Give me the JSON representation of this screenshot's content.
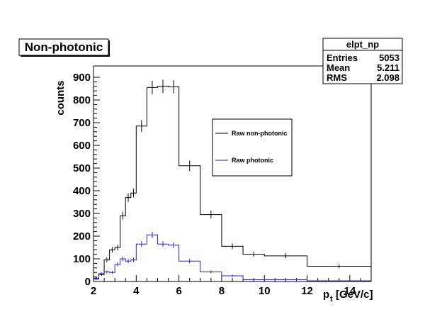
{
  "chart_data": {
    "type": "histogram",
    "title": "Non-photonic",
    "xlabel": "p",
    "xlabel_sub": "t",
    "xlabel_unit": "[GeV/c]",
    "ylabel": "counts",
    "xlim": [
      2,
      15
    ],
    "ylim": [
      0,
      950
    ],
    "x_ticks": [
      2,
      4,
      6,
      8,
      10,
      12,
      14
    ],
    "y_ticks": [
      0,
      100,
      200,
      300,
      400,
      500,
      600,
      700,
      800,
      900
    ],
    "stats": {
      "name": "elpt_np",
      "rows": [
        {
          "label": "Entries",
          "value": "5053"
        },
        {
          "label": "Mean",
          "value": "5.211"
        },
        {
          "label": "RMS",
          "value": "2.098"
        }
      ]
    },
    "legend_position": "center-right",
    "series": [
      {
        "name": "Raw non-photonic",
        "color": "#000000",
        "bins": [
          {
            "lo": 2.0,
            "hi": 2.25,
            "y": 15
          },
          {
            "lo": 2.25,
            "hi": 2.5,
            "y": 30
          },
          {
            "lo": 2.5,
            "hi": 2.75,
            "y": 95
          },
          {
            "lo": 2.75,
            "hi": 3.0,
            "y": 140
          },
          {
            "lo": 3.0,
            "hi": 3.25,
            "y": 150
          },
          {
            "lo": 3.25,
            "hi": 3.5,
            "y": 290
          },
          {
            "lo": 3.5,
            "hi": 3.75,
            "y": 370
          },
          {
            "lo": 3.75,
            "hi": 4.0,
            "y": 390
          },
          {
            "lo": 4.0,
            "hi": 4.5,
            "y": 685
          },
          {
            "lo": 4.5,
            "hi": 5.0,
            "y": 855
          },
          {
            "lo": 5.0,
            "hi": 5.5,
            "y": 860
          },
          {
            "lo": 5.5,
            "hi": 6.0,
            "y": 858
          },
          {
            "lo": 6.0,
            "hi": 7.0,
            "y": 510
          },
          {
            "lo": 7.0,
            "hi": 8.0,
            "y": 295
          },
          {
            "lo": 8.0,
            "hi": 9.0,
            "y": 155
          },
          {
            "lo": 9.0,
            "hi": 10.0,
            "y": 120
          },
          {
            "lo": 10.0,
            "hi": 12.0,
            "y": 113
          },
          {
            "lo": 12.0,
            "hi": 15.0,
            "y": 67
          }
        ]
      },
      {
        "name": "Raw photonic",
        "color": "#2222dd",
        "bins": [
          {
            "lo": 2.0,
            "hi": 2.25,
            "y": 10
          },
          {
            "lo": 2.25,
            "hi": 2.5,
            "y": 35
          },
          {
            "lo": 2.5,
            "hi": 2.75,
            "y": 42
          },
          {
            "lo": 2.75,
            "hi": 3.0,
            "y": 40
          },
          {
            "lo": 3.0,
            "hi": 3.25,
            "y": 75
          },
          {
            "lo": 3.25,
            "hi": 3.5,
            "y": 100
          },
          {
            "lo": 3.5,
            "hi": 3.75,
            "y": 90
          },
          {
            "lo": 3.75,
            "hi": 4.0,
            "y": 95
          },
          {
            "lo": 4.0,
            "hi": 4.5,
            "y": 165
          },
          {
            "lo": 4.5,
            "hi": 5.0,
            "y": 205
          },
          {
            "lo": 5.0,
            "hi": 5.5,
            "y": 165
          },
          {
            "lo": 5.5,
            "hi": 6.0,
            "y": 160
          },
          {
            "lo": 6.0,
            "hi": 7.0,
            "y": 90
          },
          {
            "lo": 7.0,
            "hi": 8.0,
            "y": 42
          },
          {
            "lo": 8.0,
            "hi": 9.0,
            "y": 25
          },
          {
            "lo": 9.0,
            "hi": 12.0,
            "y": 8
          },
          {
            "lo": 12.0,
            "hi": 15.0,
            "y": 3
          }
        ]
      }
    ]
  }
}
